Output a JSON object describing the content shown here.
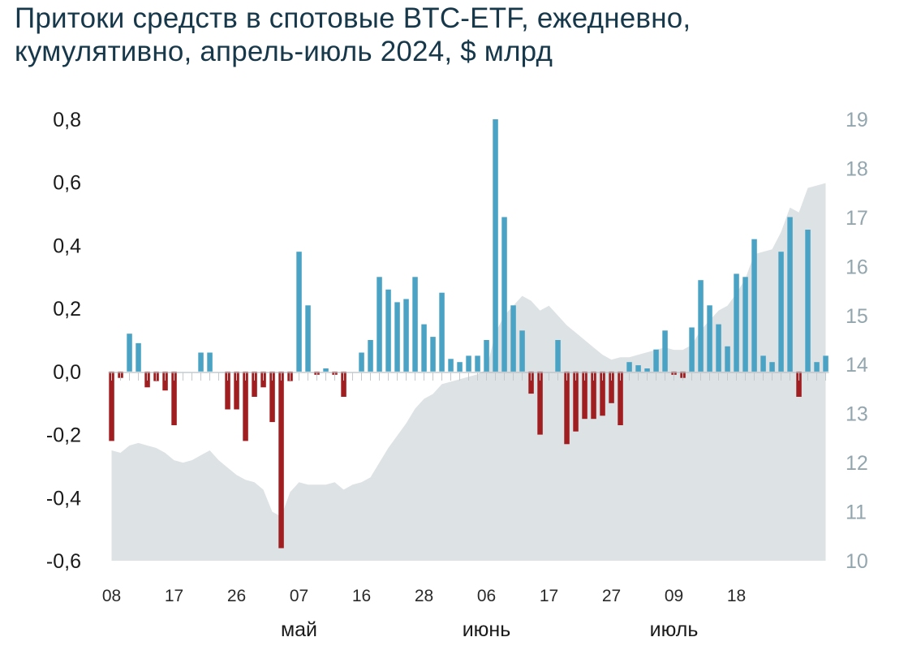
{
  "title_lines": [
    "Притоки средств в спотовые BTC-ETF, ежедневно,",
    "кумулятивно, апрель-июль 2024, $ млрд"
  ],
  "colors": {
    "positive": "#4aa3c4",
    "negative": "#a01d20",
    "cumulative_area": "#dde2e5",
    "title": "#16384a"
  },
  "chart_data": {
    "type": "bar",
    "title": "Притоки средств в спотовые BTC-ETF, ежедневно, кумулятивно, апрель-июль 2024, $ млрд",
    "y_left": {
      "min": -0.6,
      "max": 0.8,
      "ticks": [
        "0,8",
        "0,6",
        "0,4",
        "0,2",
        "0,0",
        "-0,2",
        "-0,4",
        "-0,6"
      ]
    },
    "y_right": {
      "min": 10,
      "max": 19,
      "ticks": [
        "19",
        "18",
        "17",
        "16",
        "15",
        "14",
        "13",
        "12",
        "11",
        "10"
      ]
    },
    "x_ticks": [
      {
        "index": 0,
        "label": "08"
      },
      {
        "index": 7,
        "label": "17"
      },
      {
        "index": 14,
        "label": "26"
      },
      {
        "index": 21,
        "label": "07"
      },
      {
        "index": 28,
        "label": "16"
      },
      {
        "index": 35,
        "label": "28"
      },
      {
        "index": 42,
        "label": "06"
      },
      {
        "index": 49,
        "label": "17"
      },
      {
        "index": 56,
        "label": "27"
      },
      {
        "index": 63,
        "label": "09"
      },
      {
        "index": 70,
        "label": "18"
      }
    ],
    "months": [
      {
        "index": 21,
        "label": "май"
      },
      {
        "index": 42,
        "label": "июнь"
      },
      {
        "index": 63,
        "label": "июль"
      }
    ],
    "grid": false,
    "daily_flows": [
      -0.22,
      -0.02,
      0.12,
      0.09,
      -0.05,
      -0.03,
      -0.06,
      -0.17,
      0.0,
      0.0,
      0.06,
      0.06,
      0.0,
      -0.12,
      -0.12,
      -0.22,
      -0.08,
      -0.05,
      -0.16,
      -0.56,
      -0.03,
      0.38,
      0.21,
      -0.01,
      0.01,
      -0.01,
      -0.08,
      0.0,
      0.06,
      0.1,
      0.3,
      0.26,
      0.22,
      0.23,
      0.3,
      0.15,
      0.11,
      0.25,
      0.04,
      0.03,
      0.05,
      0.05,
      0.1,
      0.8,
      0.49,
      0.21,
      0.13,
      -0.07,
      -0.2,
      0.0,
      0.1,
      -0.23,
      -0.19,
      -0.15,
      -0.15,
      -0.14,
      -0.1,
      -0.17,
      0.03,
      0.02,
      0.01,
      0.07,
      0.13,
      -0.01,
      -0.02,
      0.14,
      0.29,
      0.21,
      0.15,
      0.08,
      0.31,
      0.3,
      0.42,
      0.05,
      0.03,
      0.38,
      0.49,
      -0.08,
      0.45,
      0.03,
      0.05
    ],
    "cumulative": [
      12.25,
      12.2,
      12.35,
      12.4,
      12.35,
      12.3,
      12.2,
      12.05,
      12.0,
      12.05,
      12.15,
      12.25,
      12.05,
      11.9,
      11.75,
      11.65,
      11.6,
      11.45,
      11.0,
      10.9,
      11.4,
      11.6,
      11.55,
      11.55,
      11.55,
      11.6,
      11.45,
      11.55,
      11.6,
      11.7,
      12.0,
      12.3,
      12.55,
      12.8,
      13.1,
      13.3,
      13.4,
      13.6,
      13.65,
      13.7,
      13.75,
      13.8,
      13.9,
      14.65,
      15.0,
      15.2,
      15.4,
      15.3,
      15.1,
      15.2,
      15.0,
      14.8,
      14.65,
      14.5,
      14.35,
      14.2,
      14.1,
      14.15,
      14.15,
      14.2,
      14.25,
      14.3,
      14.35,
      14.3,
      14.3,
      14.4,
      14.7,
      14.9,
      15.1,
      15.2,
      15.45,
      15.75,
      16.25,
      16.3,
      16.35,
      16.7,
      17.2,
      17.1,
      17.6,
      17.65,
      17.7
    ]
  }
}
